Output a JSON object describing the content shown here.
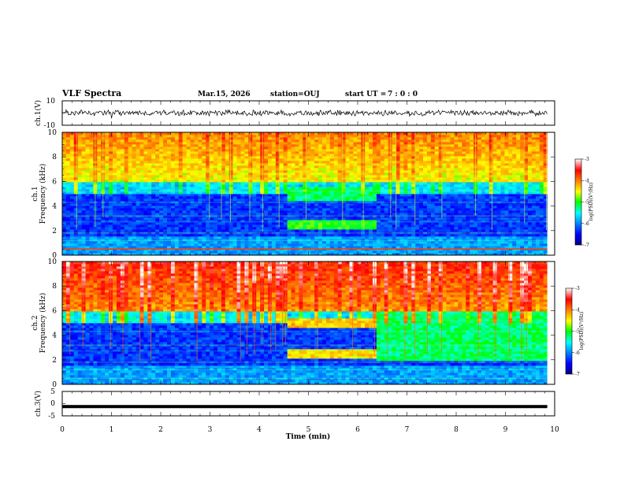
{
  "chart_data": {
    "type": "heatmap",
    "title": "VLF Spectra",
    "header": {
      "date": "Mar.15, 2026",
      "station": "station=OUJ",
      "start_label": "start UT =",
      "start_time": "7 : 0 : 0"
    },
    "x_axis": {
      "label": "Time (min)",
      "range": [
        0,
        10
      ],
      "ticks": [
        "0",
        "1",
        "2",
        "3",
        "4",
        "5",
        "6",
        "7",
        "8",
        "9",
        "10"
      ],
      "data_end": 9.85
    },
    "panels": [
      {
        "id": "ch1_waveform",
        "type": "line",
        "ylabel": "ch.1(V)",
        "ylim": [
          -10,
          10
        ],
        "yticks": [
          "10",
          "-10"
        ],
        "signal_level": 0,
        "noise_amplitude_v": 2.5
      },
      {
        "id": "ch1_spectrogram",
        "type": "heatmap",
        "ylabel": "Frequency (kHz)",
        "channel_label": "ch.1",
        "ylim": [
          0,
          10
        ],
        "yticks": [
          "0",
          "2",
          "4",
          "6",
          "8",
          "10"
        ],
        "colorbar": {
          "label": "log(PSD)(V²/Hz)",
          "range": [
            -7,
            -3
          ],
          "ticks": [
            "-3",
            "-4",
            "-5",
            "-6",
            "-7"
          ]
        },
        "features": [
          {
            "name": "broadband noise above 6 kHz",
            "t": [
              0,
              9.85
            ],
            "f_khz": [
              6,
              10
            ],
            "log_psd": -4.6
          },
          {
            "name": "emission band",
            "t": [
              4.6,
              6.35
            ],
            "f_khz": [
              4.5,
              5.5
            ],
            "log_psd": -5.2
          },
          {
            "name": "emission band",
            "t": [
              4.6,
              6.35
            ],
            "f_khz": [
              2.1,
              2.8
            ],
            "log_psd": -5.0
          },
          {
            "name": "narrowband line",
            "f_khz": 0.5,
            "log_psd": -3.6
          }
        ]
      },
      {
        "id": "ch2_spectrogram",
        "type": "heatmap",
        "ylabel": "Frequency (kHz)",
        "channel_label": "ch.2",
        "ylim": [
          0,
          10
        ],
        "yticks": [
          "0",
          "2",
          "4",
          "6",
          "8",
          "10"
        ],
        "colorbar": {
          "label": "log(PSD)(V²/Hz)",
          "range": [
            -7,
            -3
          ],
          "ticks": [
            "-3",
            "-4",
            "-5",
            "-6",
            "-7"
          ]
        },
        "features": [
          {
            "name": "broadband noise above 6 kHz",
            "t": [
              0,
              9.85
            ],
            "f_khz": [
              6,
              10
            ],
            "log_psd": -4.2
          },
          {
            "name": "emission band",
            "t": [
              4.6,
              6.35
            ],
            "f_khz": [
              4.6,
              5.4
            ],
            "log_psd": -4.3
          },
          {
            "name": "emission band",
            "t": [
              4.6,
              6.35
            ],
            "f_khz": [
              2.1,
              2.8
            ],
            "log_psd": -4.4
          },
          {
            "name": "elevated background",
            "t": [
              6.35,
              9.85
            ],
            "f_khz": [
              2,
              6
            ],
            "log_psd": -5.2
          }
        ]
      },
      {
        "id": "ch3_waveform",
        "type": "line",
        "ylabel": "ch.3(V)",
        "ylim": [
          -5,
          5
        ],
        "yticks": [
          "5",
          "0",
          "-5"
        ],
        "signal_level": -1.2
      }
    ]
  }
}
